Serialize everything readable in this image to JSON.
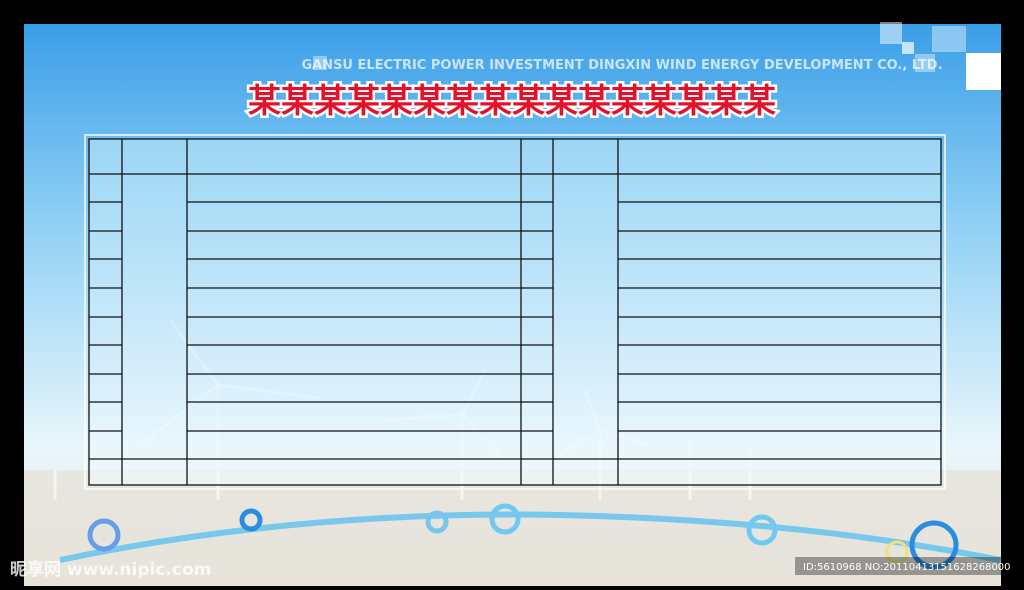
{
  "header": {
    "company": "GANSU ELECTRIC POWER INVESTMENT DINGXIN WIND ENERGY DEVELOPMENT CO., LTD.",
    "title": "某某某某某某某某某某某某某某某某"
  },
  "watermark": {
    "site": "昵享网 www.nipic.com",
    "id": "ID:5610968 NO:20110413151628268000"
  }
}
